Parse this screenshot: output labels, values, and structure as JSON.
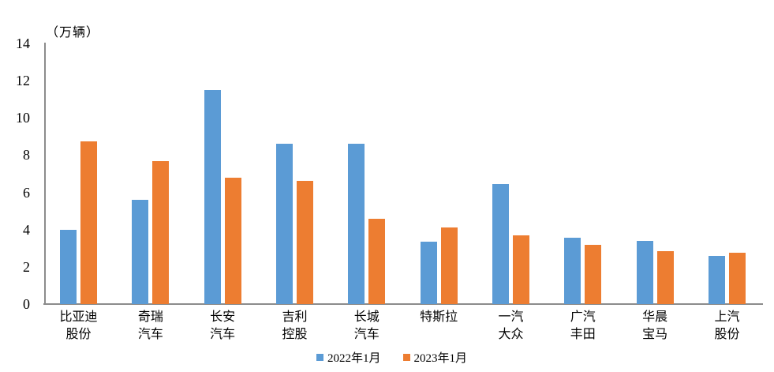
{
  "chart_data": {
    "type": "bar",
    "title": "",
    "unit_label": "（万辆）",
    "categories": [
      {
        "label": "比亚迪股份",
        "lines": [
          "比亚迪",
          "股份"
        ]
      },
      {
        "label": "奇瑞汽车",
        "lines": [
          "奇瑞",
          "汽车"
        ]
      },
      {
        "label": "长安汽车",
        "lines": [
          "长安",
          "汽车"
        ]
      },
      {
        "label": "吉利控股",
        "lines": [
          "吉利",
          "控股"
        ]
      },
      {
        "label": "长城汽车",
        "lines": [
          "长城",
          "汽车"
        ]
      },
      {
        "label": "特斯拉",
        "lines": [
          "特斯拉"
        ]
      },
      {
        "label": "一汽大众",
        "lines": [
          "一汽",
          "大众"
        ]
      },
      {
        "label": "广汽丰田",
        "lines": [
          "广汽",
          "丰田"
        ]
      },
      {
        "label": "华晨宝马",
        "lines": [
          "华晨",
          "宝马"
        ]
      },
      {
        "label": "上汽股份",
        "lines": [
          "上汽",
          "股份"
        ]
      }
    ],
    "series": [
      {
        "name": "2022年1月",
        "color": "#5B9BD5",
        "values": [
          4.0,
          5.6,
          11.5,
          8.6,
          8.6,
          3.35,
          6.45,
          3.55,
          3.4,
          2.6
        ]
      },
      {
        "name": "2023年1月",
        "color": "#ED7D31",
        "values": [
          8.75,
          7.7,
          6.8,
          6.6,
          4.6,
          4.1,
          3.7,
          3.2,
          2.85,
          2.75
        ]
      }
    ],
    "y_axis": {
      "min": 0,
      "max": 14,
      "step": 2,
      "ticks": [
        0,
        2,
        4,
        6,
        8,
        10,
        12,
        14
      ]
    },
    "xlabel": "",
    "ylabel": "（万辆）",
    "ylim": [
      0,
      14
    ],
    "grid": false,
    "legend_position": "bottom",
    "axis_color": "#8c8c8c"
  }
}
